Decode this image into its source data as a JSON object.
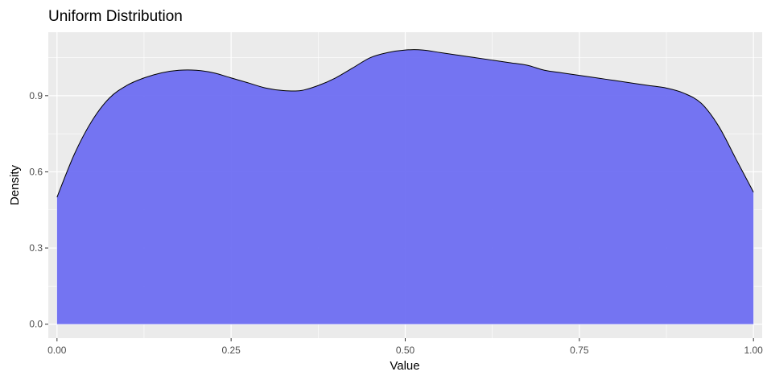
{
  "chart_data": {
    "type": "area",
    "title": "Uniform Distribution",
    "xlabel": "Value",
    "ylabel": "Density",
    "xlim": [
      -0.0125,
      1.0125
    ],
    "ylim": [
      -0.055,
      1.15
    ],
    "x_ticks": [
      0,
      0.25,
      0.5,
      0.75,
      1
    ],
    "x_tick_labels": [
      "0.00",
      "0.25",
      "0.50",
      "0.75",
      "1.00"
    ],
    "y_ticks": [
      0,
      0.3,
      0.6,
      0.9
    ],
    "y_tick_labels": [
      "0.0",
      "0.3",
      "0.6",
      "0.9"
    ],
    "grid": true,
    "legend": "none",
    "colors": {
      "panel": "#ebebeb",
      "grid": "#ffffff",
      "fill": "#6a6af2",
      "outline": "#000000",
      "tick": "#333333"
    },
    "series": [
      {
        "x": [
          0,
          0.025,
          0.05,
          0.075,
          0.1,
          0.125,
          0.15,
          0.175,
          0.2,
          0.225,
          0.25,
          0.275,
          0.3,
          0.325,
          0.35,
          0.375,
          0.4,
          0.425,
          0.45,
          0.475,
          0.5,
          0.525,
          0.55,
          0.575,
          0.6,
          0.625,
          0.65,
          0.675,
          0.7,
          0.725,
          0.75,
          0.775,
          0.8,
          0.825,
          0.85,
          0.875,
          0.9,
          0.925,
          0.95,
          0.975,
          1
        ],
        "y": [
          0.5,
          0.67,
          0.8,
          0.89,
          0.94,
          0.97,
          0.99,
          1.0,
          1.0,
          0.99,
          0.97,
          0.95,
          0.93,
          0.92,
          0.92,
          0.94,
          0.97,
          1.01,
          1.05,
          1.07,
          1.08,
          1.08,
          1.07,
          1.06,
          1.05,
          1.04,
          1.03,
          1.02,
          1.0,
          0.99,
          0.98,
          0.97,
          0.96,
          0.95,
          0.94,
          0.93,
          0.91,
          0.87,
          0.78,
          0.65,
          0.52
        ]
      }
    ]
  }
}
